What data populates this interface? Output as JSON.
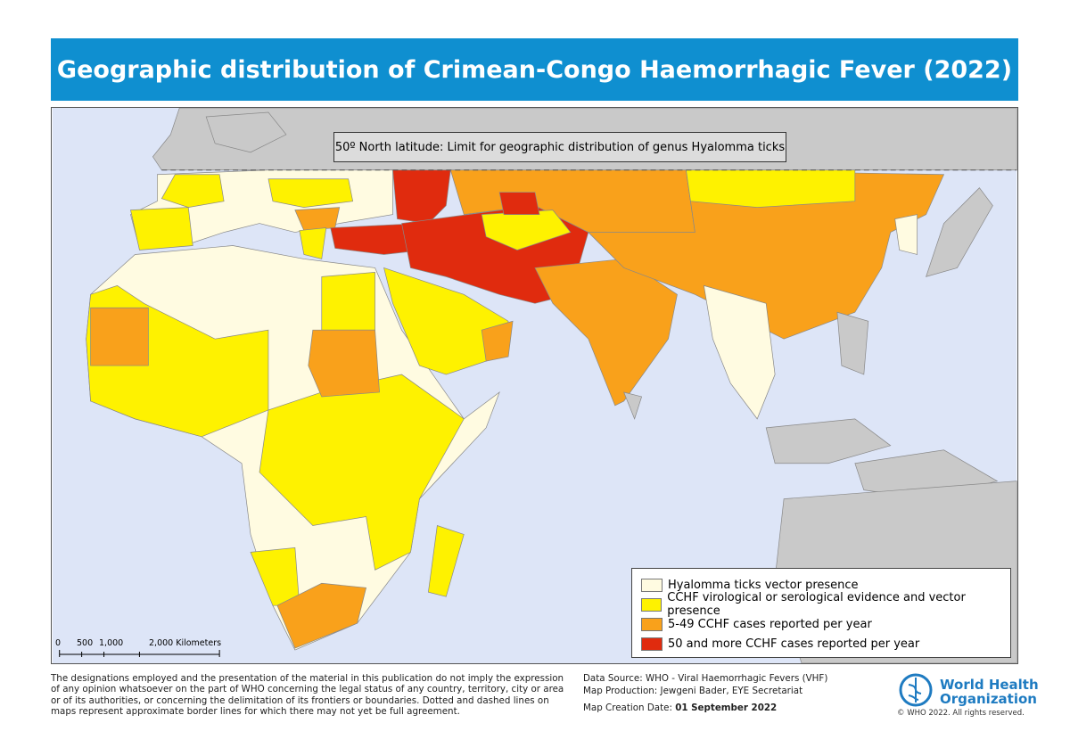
{
  "header": {
    "title": "Geographic distribution of Crimean-Congo Haemorrhagic Fever (2022)"
  },
  "map": {
    "annotation": "50º North latitude: Limit for geographic distribution of genus Hyalomma ticks",
    "legend": [
      "Hyalomma ticks vector presence",
      "CCHF virological or serological evidence and vector presence",
      "5-49 CCHF cases reported per year",
      "50 and more CCHF cases reported per year"
    ],
    "scale_bar": [
      "0",
      "500",
      "1,000",
      "2,000 Kilometers"
    ]
  },
  "footer": {
    "disclaimer": "The designations employed and the presentation of the material in this publication do not imply the expression of any opinion whatsoever on the part of WHO concerning the legal status of any country, territory, city or area or of its authorities, or concerning the delimitation of its frontiers or boundaries. Dotted and dashed lines on maps represent approximate border lines for which there may not yet be full agreement.",
    "data_source": "Data Source: WHO - Viral Haemorrhagic Fevers (VHF)",
    "production": "Map Production: Jewgeni Bader, EYE Secretariat",
    "creation_label": "Map Creation Date:",
    "creation_date": "01 September 2022",
    "logo": [
      "World Health",
      "Organization"
    ],
    "copyright": "© WHO 2022. All rights reserved."
  }
}
